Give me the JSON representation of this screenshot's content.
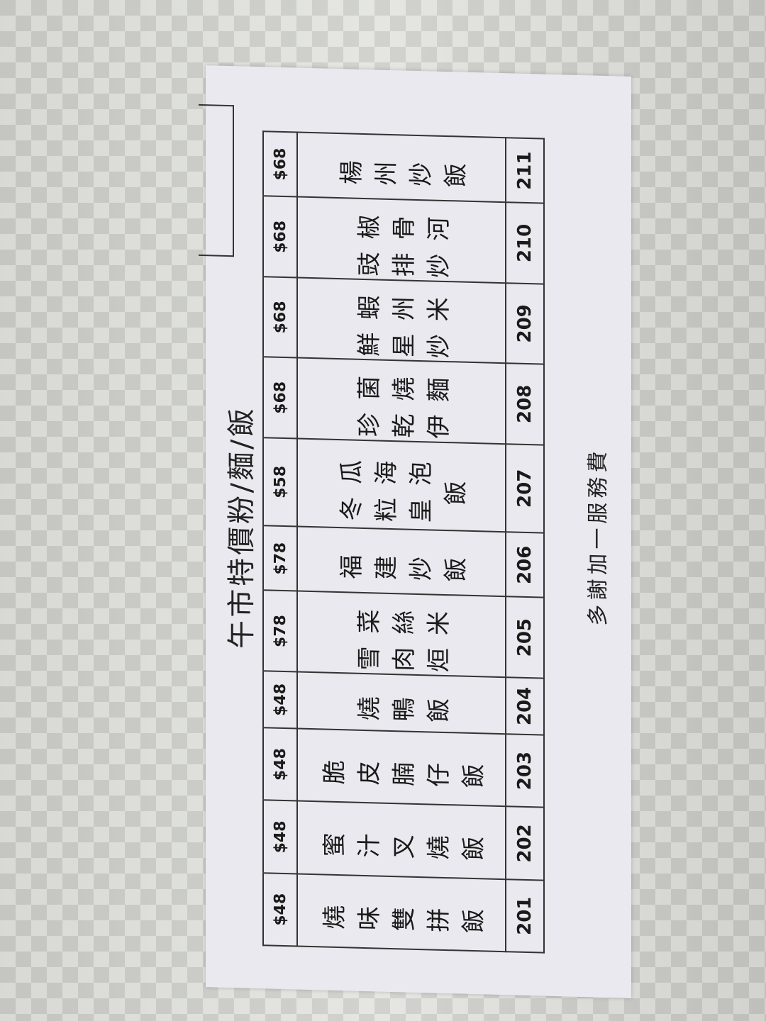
{
  "menu": {
    "title": "午市特價粉/麵/飯",
    "footer": "多謝加一服務費",
    "items": [
      {
        "number": "201",
        "price": "$48",
        "name": "燒味雙拼飯"
      },
      {
        "number": "202",
        "price": "$48",
        "name": "蜜汁叉燒飯"
      },
      {
        "number": "203",
        "price": "$48",
        "name": "脆皮腩仔飯"
      },
      {
        "number": "204",
        "price": "$48",
        "name": "燒鴨飯"
      },
      {
        "number": "205",
        "price": "$78",
        "name": "雪菜肉絲烜米"
      },
      {
        "number": "206",
        "price": "$78",
        "name": "福建炒飯"
      },
      {
        "number": "207",
        "price": "$58",
        "name": "冬瓜粒海皇泡飯"
      },
      {
        "number": "208",
        "price": "$68",
        "name": "珍菌乾燒伊麵"
      },
      {
        "number": "209",
        "price": "$68",
        "name": "鮮蝦星州炒米"
      },
      {
        "number": "210",
        "price": "$68",
        "name": "豉椒排骨炒河"
      },
      {
        "number": "211",
        "price": "$68",
        "name": "楊州炒飯"
      }
    ]
  }
}
